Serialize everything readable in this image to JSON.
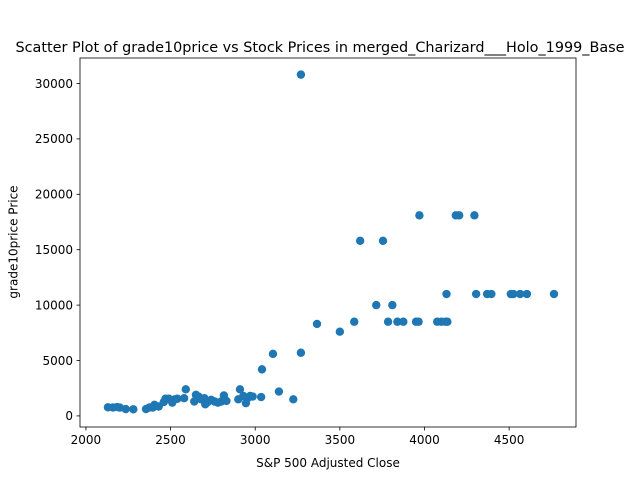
{
  "chart_data": {
    "type": "scatter",
    "title": "Scatter Plot of grade10price vs Stock Prices in merged_Charizard___Holo_1999_Base",
    "xlabel": "S&P 500 Adjusted Close",
    "ylabel": "grade10price Price",
    "xlim": [
      1965,
      4895
    ],
    "ylim": [
      -1000,
      32300
    ],
    "xticks": [
      2000,
      2500,
      3000,
      3500,
      4000,
      4500
    ],
    "yticks": [
      0,
      5000,
      10000,
      15000,
      20000,
      25000,
      30000
    ],
    "grid": false,
    "marker_color": "#1f77b4",
    "points": [
      {
        "x": 2130,
        "y": 780
      },
      {
        "x": 2160,
        "y": 760
      },
      {
        "x": 2185,
        "y": 800
      },
      {
        "x": 2200,
        "y": 750
      },
      {
        "x": 2235,
        "y": 620
      },
      {
        "x": 2280,
        "y": 600
      },
      {
        "x": 2355,
        "y": 620
      },
      {
        "x": 2375,
        "y": 760
      },
      {
        "x": 2395,
        "y": 760
      },
      {
        "x": 2405,
        "y": 1000
      },
      {
        "x": 2430,
        "y": 850
      },
      {
        "x": 2460,
        "y": 1250
      },
      {
        "x": 2470,
        "y": 1550
      },
      {
        "x": 2490,
        "y": 1550
      },
      {
        "x": 2510,
        "y": 1200
      },
      {
        "x": 2525,
        "y": 1500
      },
      {
        "x": 2540,
        "y": 1550
      },
      {
        "x": 2580,
        "y": 1600
      },
      {
        "x": 2590,
        "y": 2400
      },
      {
        "x": 2640,
        "y": 1300
      },
      {
        "x": 2650,
        "y": 1900
      },
      {
        "x": 2665,
        "y": 1750
      },
      {
        "x": 2680,
        "y": 1500
      },
      {
        "x": 2700,
        "y": 1600
      },
      {
        "x": 2705,
        "y": 1050
      },
      {
        "x": 2720,
        "y": 1250
      },
      {
        "x": 2740,
        "y": 1450
      },
      {
        "x": 2760,
        "y": 1300
      },
      {
        "x": 2780,
        "y": 1200
      },
      {
        "x": 2800,
        "y": 1300
      },
      {
        "x": 2815,
        "y": 1850
      },
      {
        "x": 2830,
        "y": 1350
      },
      {
        "x": 2900,
        "y": 1500
      },
      {
        "x": 2910,
        "y": 2400
      },
      {
        "x": 2930,
        "y": 1800
      },
      {
        "x": 2945,
        "y": 1150
      },
      {
        "x": 2955,
        "y": 1600
      },
      {
        "x": 2970,
        "y": 1800
      },
      {
        "x": 2985,
        "y": 1750
      },
      {
        "x": 3035,
        "y": 1700
      },
      {
        "x": 3040,
        "y": 4200
      },
      {
        "x": 3105,
        "y": 5600
      },
      {
        "x": 3140,
        "y": 2200
      },
      {
        "x": 3225,
        "y": 1500
      },
      {
        "x": 3270,
        "y": 5700
      },
      {
        "x": 3270,
        "y": 30800
      },
      {
        "x": 3365,
        "y": 8300
      },
      {
        "x": 3500,
        "y": 7600
      },
      {
        "x": 3585,
        "y": 8500
      },
      {
        "x": 3620,
        "y": 15800
      },
      {
        "x": 3715,
        "y": 10000
      },
      {
        "x": 3755,
        "y": 15800
      },
      {
        "x": 3785,
        "y": 8500
      },
      {
        "x": 3810,
        "y": 10000
      },
      {
        "x": 3840,
        "y": 8500
      },
      {
        "x": 3875,
        "y": 8500
      },
      {
        "x": 3950,
        "y": 8500
      },
      {
        "x": 3965,
        "y": 8500
      },
      {
        "x": 3970,
        "y": 18100
      },
      {
        "x": 4075,
        "y": 8500
      },
      {
        "x": 4100,
        "y": 8500
      },
      {
        "x": 4125,
        "y": 8500
      },
      {
        "x": 4130,
        "y": 11000
      },
      {
        "x": 4135,
        "y": 8500
      },
      {
        "x": 4185,
        "y": 18100
      },
      {
        "x": 4205,
        "y": 18100
      },
      {
        "x": 4295,
        "y": 18100
      },
      {
        "x": 4305,
        "y": 11000
      },
      {
        "x": 4370,
        "y": 11000
      },
      {
        "x": 4395,
        "y": 11000
      },
      {
        "x": 4510,
        "y": 11000
      },
      {
        "x": 4525,
        "y": 11000
      },
      {
        "x": 4565,
        "y": 11000
      },
      {
        "x": 4605,
        "y": 11000
      },
      {
        "x": 4765,
        "y": 11000
      }
    ]
  }
}
